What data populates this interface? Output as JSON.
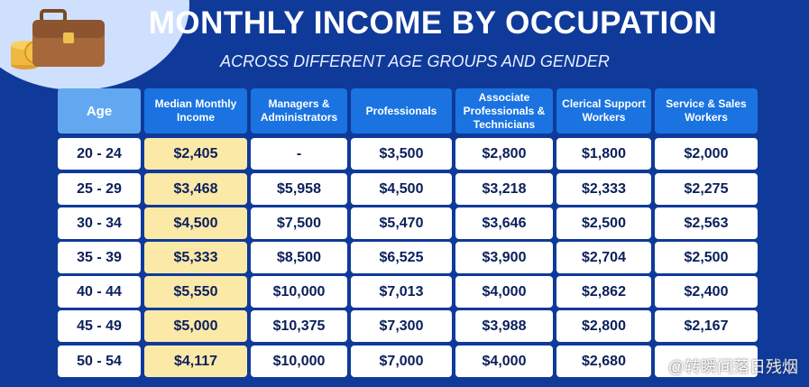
{
  "header": {
    "title": "MONTHLY INCOME BY OCCUPATION",
    "subtitle": "ACROSS DIFFERENT AGE GROUPS AND GENDER"
  },
  "watermark": "@转瞬间落日残烟",
  "icons": [
    "briefcase-icon",
    "coin-stack-icon"
  ],
  "colors": {
    "background": "#0f3a9a",
    "header_cell": "#1a73e0",
    "age_header": "#62a8f0",
    "median_highlight": "#fbe9a8",
    "cell": "#ffffff",
    "text_dark": "#0b1f5a"
  },
  "chart_data": {
    "type": "table",
    "title": "MONTHLY INCOME BY OCCUPATION",
    "subtitle": "ACROSS DIFFERENT AGE GROUPS AND GENDER",
    "columns": [
      "Age",
      "Median Monthly Income",
      "Managers & Administrators",
      "Professionals",
      "Associate Professionals & Technicians",
      "Clerical Support Workers",
      "Service & Sales Workers"
    ],
    "rows": [
      [
        "20 - 24",
        "$2,405",
        "-",
        "$3,500",
        "$2,800",
        "$1,800",
        "$2,000"
      ],
      [
        "25 - 29",
        "$3,468",
        "$5,958",
        "$4,500",
        "$3,218",
        "$2,333",
        "$2,275"
      ],
      [
        "30 - 34",
        "$4,500",
        "$7,500",
        "$5,470",
        "$3,646",
        "$2,500",
        "$2,563"
      ],
      [
        "35 - 39",
        "$5,333",
        "$8,500",
        "$6,525",
        "$3,900",
        "$2,704",
        "$2,500"
      ],
      [
        "40 - 44",
        "$5,550",
        "$10,000",
        "$7,013",
        "$4,000",
        "$2,862",
        "$2,400"
      ],
      [
        "45 - 49",
        "$5,000",
        "$10,375",
        "$7,300",
        "$3,988",
        "$2,800",
        "$2,167"
      ],
      [
        "50 - 54",
        "$4,117",
        "$10,000",
        "$7,000",
        "$4,000",
        "$2,680",
        ""
      ]
    ]
  }
}
